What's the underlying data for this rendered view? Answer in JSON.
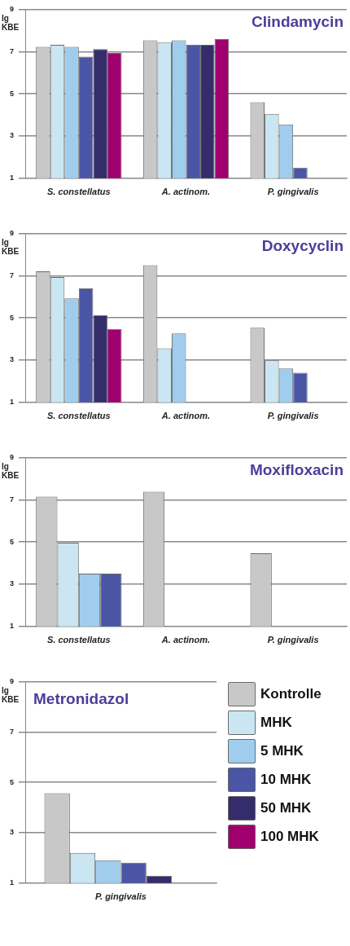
{
  "chart_data": [
    {
      "type": "bar",
      "title": "Clindamycin",
      "ylabel": "lg KBE",
      "categories": [
        "S. constellatus",
        "A. actinom.",
        "P. gingivalis"
      ],
      "ylim": [
        1,
        9
      ],
      "yticks": [
        1,
        3,
        5,
        7,
        9
      ],
      "grid": "y",
      "legend": false,
      "series": [
        {
          "color": "#c8c8c8",
          "values": [
            7.22,
            7.53,
            4.6
          ]
        },
        {
          "color": "#c9e6f2",
          "values": [
            7.32,
            7.42,
            4.05
          ]
        },
        {
          "color": "#a0cdee",
          "values": [
            7.22,
            7.53,
            3.55
          ]
        },
        {
          "color": "#4a56a5",
          "values": [
            6.76,
            7.33,
            1.5
          ]
        },
        {
          "color": "#352c6c",
          "values": [
            7.12,
            7.32,
            null
          ]
        },
        {
          "color": "#a0006e",
          "values": [
            6.93,
            7.59,
            null
          ]
        }
      ]
    },
    {
      "type": "bar",
      "title": "Doxycyclin",
      "ylabel": "lg KBE",
      "categories": [
        "S. constellatus",
        "A. actinom.",
        "P. gingivalis"
      ],
      "ylim": [
        1,
        9
      ],
      "yticks": [
        1,
        3,
        5,
        7,
        9
      ],
      "grid": "y",
      "legend": false,
      "series": [
        {
          "color": "#c8c8c8",
          "values": [
            7.2,
            7.49,
            4.53
          ]
        },
        {
          "color": "#c9e6f2",
          "values": [
            6.93,
            3.56,
            2.99
          ]
        },
        {
          "color": "#a0cdee",
          "values": [
            5.92,
            4.26,
            2.6
          ]
        },
        {
          "color": "#4a56a5",
          "values": [
            6.39,
            null,
            2.4
          ]
        },
        {
          "color": "#352c6c",
          "values": [
            5.12,
            null,
            null
          ]
        },
        {
          "color": "#a0006e",
          "values": [
            4.47,
            null,
            null
          ]
        }
      ]
    },
    {
      "type": "bar",
      "title": "Moxifloxacin",
      "ylabel": "lg KBE",
      "categories": [
        "S. constellatus",
        "A. actinom.",
        "P. gingivalis"
      ],
      "ylim": [
        1,
        9
      ],
      "yticks": [
        1,
        3,
        5,
        7,
        9
      ],
      "grid": "y",
      "legend": false,
      "series": [
        {
          "color": "#c8c8c8",
          "values": [
            7.14,
            7.38,
            4.46
          ]
        },
        {
          "color": "#c9e6f2",
          "values": [
            4.97,
            null,
            null
          ]
        },
        {
          "color": "#a0cdee",
          "values": [
            3.5,
            null,
            null
          ]
        },
        {
          "color": "#4a56a5",
          "values": [
            3.5,
            null,
            null
          ]
        }
      ]
    },
    {
      "type": "bar",
      "title": "Metronidazol",
      "ylabel": "lg KBE",
      "categories": [
        "P. gingivalis"
      ],
      "ylim": [
        1,
        9
      ],
      "yticks": [
        1,
        3,
        5,
        7,
        9
      ],
      "grid": "y",
      "legend": "right",
      "series": [
        {
          "name": "Kontrolle",
          "color": "#c8c8c8",
          "values": [
            4.57
          ]
        },
        {
          "name": "MHK",
          "color": "#c9e6f2",
          "values": [
            2.2
          ]
        },
        {
          "name": "5 MHK",
          "color": "#a0cdee",
          "values": [
            1.91
          ]
        },
        {
          "name": "10 MHK",
          "color": "#4a56a5",
          "values": [
            1.81
          ]
        },
        {
          "name": "50 MHK",
          "color": "#352c6c",
          "values": [
            1.29
          ]
        },
        {
          "name": "100 MHK",
          "color": "#a0006e",
          "values": [
            null
          ]
        }
      ]
    }
  ]
}
